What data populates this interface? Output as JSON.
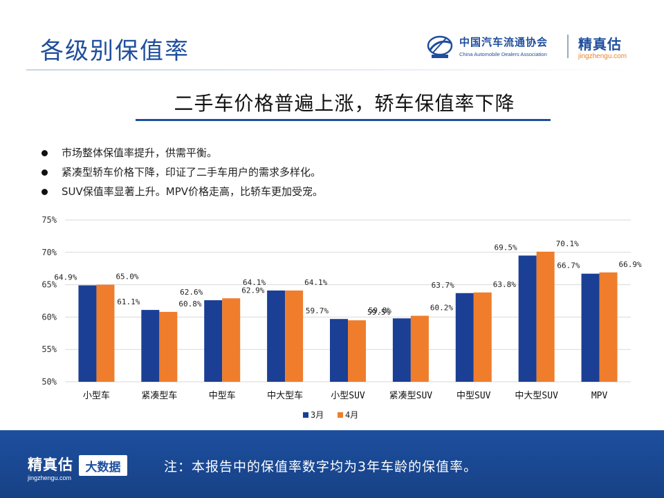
{
  "header": {
    "title": "各级别保值率",
    "cada_name_cn": "中国汽车流通协会",
    "cada_name_en": "China Automobile Dealers Association",
    "brand_cn": "精真估",
    "brand_url": "jingzhengu.com"
  },
  "subtitle": "二手车价格普遍上涨，轿车保值率下降",
  "bullets": [
    "市场整体保值率提升，供需平衡。",
    "紧凑型轿车价格下降，印证了二手车用户的需求多样化。",
    "SUV保值率显著上升。MPV价格走高，比轿车更加受宠。"
  ],
  "chart_data": {
    "type": "bar",
    "categories": [
      "小型车",
      "紧凑型车",
      "中型车",
      "中大型车",
      "小型SUV",
      "紧凑型SUV",
      "中型SUV",
      "中大型SUV",
      "MPV"
    ],
    "series": [
      {
        "name": "3月",
        "color": "#1a3f94",
        "values": [
          64.9,
          61.1,
          62.6,
          64.1,
          59.7,
          59.8,
          63.7,
          69.5,
          66.7
        ]
      },
      {
        "name": "4月",
        "color": "#ef7d2c",
        "values": [
          65.0,
          60.8,
          62.9,
          64.1,
          59.5,
          60.2,
          63.8,
          70.1,
          66.9
        ]
      }
    ],
    "value_suffix": "%",
    "ylim": [
      50,
      75
    ],
    "yticks": [
      50,
      55,
      60,
      65,
      70,
      75
    ],
    "ytick_labels": [
      "50%",
      "55%",
      "60%",
      "65%",
      "70%",
      "75%"
    ],
    "grid": true,
    "legend_position": "bottom-center"
  },
  "footer": {
    "brand_cn": "精真估",
    "brand_url": "jingzhengu.com",
    "badge": "大数据",
    "note": "注：本报告中的保值率数字均为3年车龄的保值率。"
  }
}
